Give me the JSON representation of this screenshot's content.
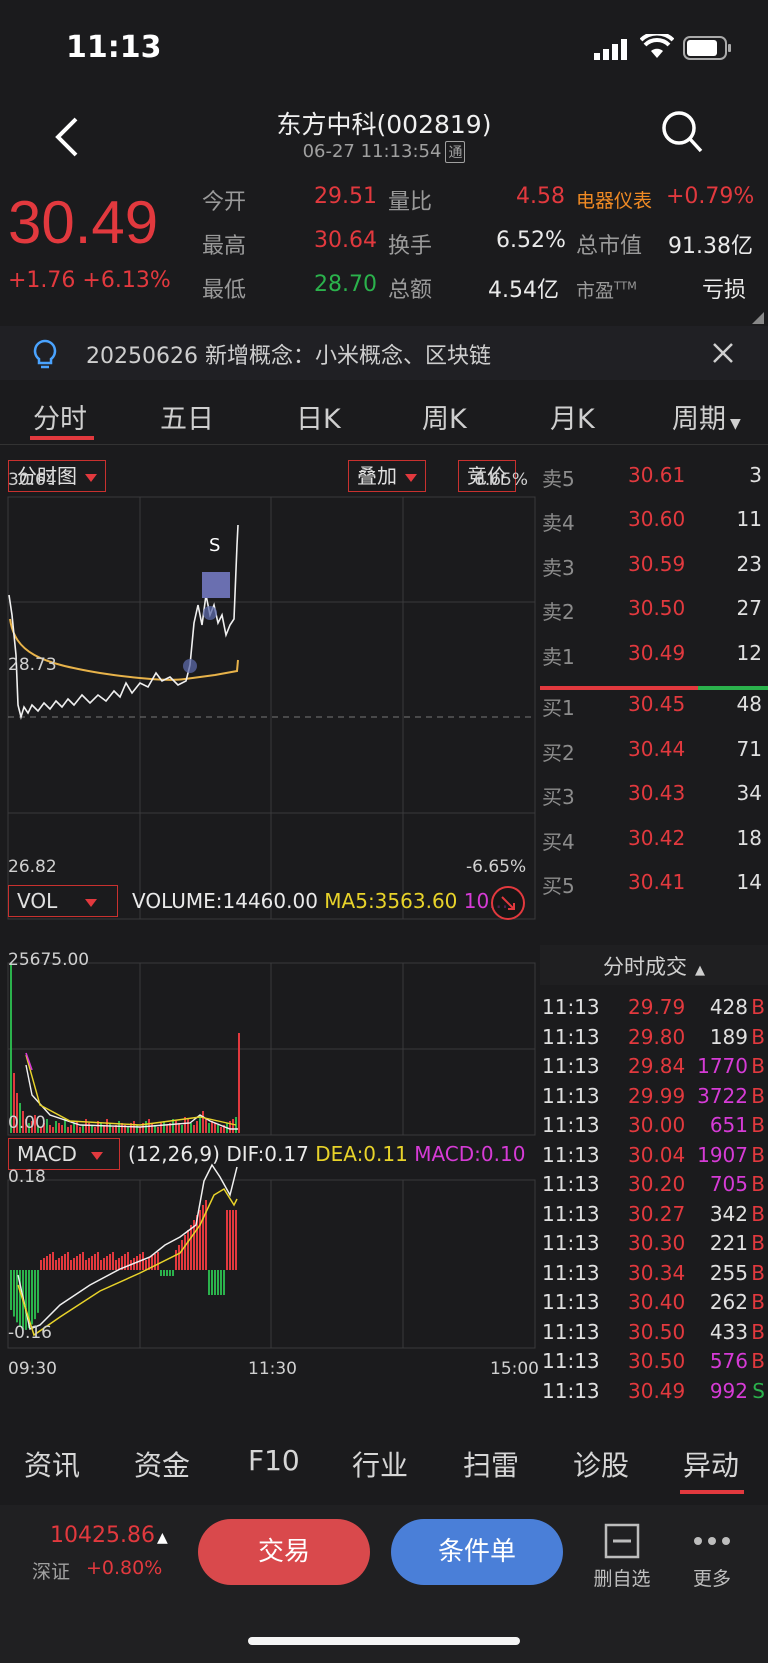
{
  "status_bar": {
    "time": "11:13"
  },
  "header": {
    "title": "东方中科(002819)",
    "datetime": "06-27 11:13:54",
    "badge": "通"
  },
  "quote": {
    "price": "30.49",
    "change": "+1.76",
    "change_pct": "+6.13%",
    "open_label": "今开",
    "open": "29.51",
    "high_label": "最高",
    "high": "30.64",
    "low_label": "最低",
    "low": "28.70",
    "vol_ratio_label": "量比",
    "vol_ratio": "4.58",
    "turnover_label": "换手",
    "turnover": "6.52%",
    "amount_label": "总额",
    "amount": "4.54亿",
    "sector": "电器仪表",
    "sector_pct": "+0.79%",
    "mktcap_label": "总市值",
    "mktcap": "91.38亿",
    "pe_label": "市盈",
    "pe_sup": "TTM",
    "pe": "亏损"
  },
  "notice": {
    "text": "20250626 新增概念：小米概念、区块链"
  },
  "tabs": [
    "分时",
    "五日",
    "日K",
    "周K",
    "月K",
    "周期"
  ],
  "chart": {
    "type_label": "分时图",
    "overlay_label": "叠加",
    "auction_label": "竞价",
    "y_top": "30.64",
    "y_mid": "28.73",
    "y_bottom": "26.82",
    "pct_top": "6.65%",
    "pct_bottom": "-6.65%",
    "s_marker": "S",
    "vol_label": "VOL",
    "volume_text": "VOLUME:14460.00",
    "ma5_text": "MA5:3563.60",
    "ma10_text": "10...",
    "vol_top": "25675.00",
    "vol_bottom": "0.00",
    "macd_label": "MACD",
    "macd_params": "(12,26,9)",
    "dif_text": "DIF:0.17",
    "dea_text": "DEA:0.11",
    "macd_text": "MACD:0.10",
    "macd_top": "0.18",
    "macd_bottom": "-0.16",
    "x_labels": [
      "09:30",
      "11:30",
      "15:00"
    ]
  },
  "order_book": {
    "asks": [
      {
        "label": "卖5",
        "price": "30.61",
        "vol": "3"
      },
      {
        "label": "卖4",
        "price": "30.60",
        "vol": "11"
      },
      {
        "label": "卖3",
        "price": "30.59",
        "vol": "23"
      },
      {
        "label": "卖2",
        "price": "30.50",
        "vol": "27"
      },
      {
        "label": "卖1",
        "price": "30.49",
        "vol": "12"
      }
    ],
    "bids": [
      {
        "label": "买1",
        "price": "30.45",
        "vol": "48"
      },
      {
        "label": "买2",
        "price": "30.44",
        "vol": "71"
      },
      {
        "label": "买3",
        "price": "30.43",
        "vol": "34"
      },
      {
        "label": "买4",
        "price": "30.42",
        "vol": "18"
      },
      {
        "label": "买5",
        "price": "30.41",
        "vol": "14"
      }
    ]
  },
  "trades": {
    "header": "分时成交",
    "rows": [
      {
        "time": "11:13",
        "price": "29.79",
        "vol": "428",
        "side": "B",
        "vc": "#e0e0e0"
      },
      {
        "time": "11:13",
        "price": "29.80",
        "vol": "189",
        "side": "B",
        "vc": "#e0e0e0"
      },
      {
        "time": "11:13",
        "price": "29.84",
        "vol": "1770",
        "side": "B",
        "vc": "#d63bd6"
      },
      {
        "time": "11:13",
        "price": "29.99",
        "vol": "3722",
        "side": "B",
        "vc": "#d63bd6"
      },
      {
        "time": "11:13",
        "price": "30.00",
        "vol": "651",
        "side": "B",
        "vc": "#d63bd6"
      },
      {
        "time": "11:13",
        "price": "30.04",
        "vol": "1907",
        "side": "B",
        "vc": "#d63bd6"
      },
      {
        "time": "11:13",
        "price": "30.20",
        "vol": "705",
        "side": "B",
        "vc": "#d63bd6"
      },
      {
        "time": "11:13",
        "price": "30.27",
        "vol": "342",
        "side": "B",
        "vc": "#e0e0e0"
      },
      {
        "time": "11:13",
        "price": "30.30",
        "vol": "221",
        "side": "B",
        "vc": "#e0e0e0"
      },
      {
        "time": "11:13",
        "price": "30.34",
        "vol": "255",
        "side": "B",
        "vc": "#e0e0e0"
      },
      {
        "time": "11:13",
        "price": "30.40",
        "vol": "262",
        "side": "B",
        "vc": "#e0e0e0"
      },
      {
        "time": "11:13",
        "price": "30.50",
        "vol": "433",
        "side": "B",
        "vc": "#e0e0e0"
      },
      {
        "time": "11:13",
        "price": "30.50",
        "vol": "576",
        "side": "B",
        "vc": "#d63bd6"
      },
      {
        "time": "11:13",
        "price": "30.49",
        "vol": "992",
        "side": "S",
        "vc": "#d63bd6"
      }
    ]
  },
  "bottom_tabs": [
    "资讯",
    "资金",
    "F10",
    "行业",
    "扫雷",
    "诊股",
    "异动"
  ],
  "bottom_bar": {
    "index_value": "10425.86",
    "index_name": "深证",
    "index_pct": "+0.80%",
    "trade_label": "交易",
    "cond_label": "条件单",
    "del_label": "删自选",
    "more_label": "更多"
  },
  "colors": {
    "up": "#e2393e",
    "down": "#2bb24c",
    "avg_line": "#e8b34a",
    "bg": "#1b1b1d"
  }
}
